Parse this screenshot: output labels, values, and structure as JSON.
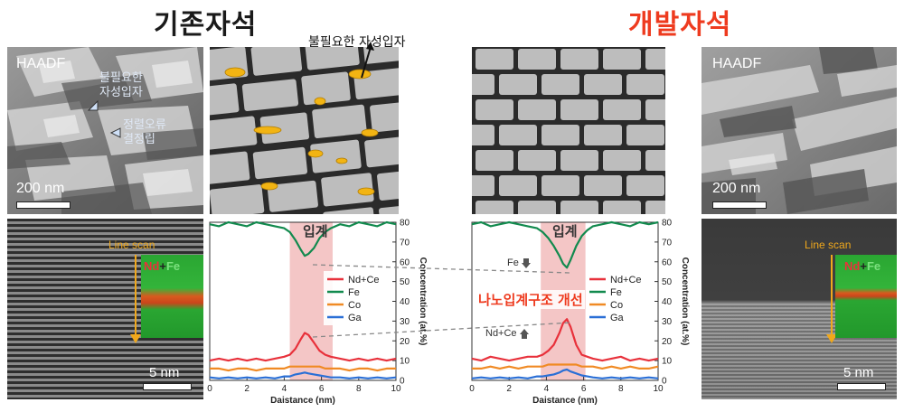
{
  "left": {
    "title": "기존자석",
    "haadf_label": "HAADF",
    "annot_particle_line1": "불필요한",
    "annot_particle_line2": "자성입자",
    "annot_grain_line1": "정렬오류",
    "annot_grain_line2": "결정립",
    "scale_top": "200 nm",
    "line_scan": "Line scan",
    "map_nd": "Nd",
    "map_plus": "+",
    "map_fe": "Fe",
    "scale_bottom": "5 nm",
    "schematic_callout": "불필요한 자성입자",
    "boundary_label": "입계"
  },
  "right": {
    "title": "개발자석",
    "haadf_label": "HAADF",
    "scale_top": "200 nm",
    "line_scan": "Line scan",
    "map_nd": "Nd",
    "map_plus": "+",
    "map_fe": "Fe",
    "scale_bottom": "5 nm",
    "boundary_label": "입계",
    "fe_annot": "Fe",
    "nd_annot": "Nd+Ce",
    "improvement": "나노입계구조 개선"
  },
  "colors": {
    "title_left": "#1a1a1a",
    "title_right": "#ee3b1f",
    "line_scan": "#f0a81c",
    "nd_ce": "#e8313b",
    "fe": "#128a4e",
    "co": "#f08a24",
    "ga": "#2a6fd6",
    "boundary": "#f4c6c6",
    "particle": "#f2b413"
  },
  "chart_data": [
    {
      "type": "line",
      "xlabel": "Daistance (nm)",
      "ylabel": "Concentration (at.%)",
      "xlim": [
        0,
        10
      ],
      "ylim": [
        0,
        80
      ],
      "xticks": [
        "0",
        "2",
        "4",
        "6",
        "8",
        "10"
      ],
      "yticks": [
        "0",
        "10",
        "20",
        "30",
        "40",
        "50",
        "60",
        "70",
        "80"
      ],
      "boundary_region": [
        4.3,
        6.6
      ],
      "boundary_label": "입계",
      "legend": "right-middle",
      "x": [
        0,
        0.5,
        1,
        1.5,
        2,
        2.5,
        3,
        3.5,
        4,
        4.3,
        4.6,
        4.9,
        5.1,
        5.3,
        5.6,
        5.9,
        6.2,
        6.5,
        7,
        7.5,
        8,
        8.5,
        9,
        9.5,
        10
      ],
      "series": [
        {
          "name": "Nd+Ce",
          "color": "#e8313b",
          "values": [
            10,
            11,
            10,
            11,
            10,
            11,
            10,
            11,
            12,
            13,
            16,
            21,
            24,
            23,
            19,
            15,
            13,
            12,
            11,
            10,
            11,
            10,
            11,
            10,
            11
          ]
        },
        {
          "name": "Fe",
          "color": "#128a4e",
          "values": [
            79,
            78,
            80,
            79,
            78,
            80,
            79,
            78,
            77,
            75,
            71,
            66,
            63,
            64,
            67,
            72,
            75,
            77,
            79,
            78,
            80,
            79,
            78,
            80,
            79
          ]
        },
        {
          "name": "Co",
          "color": "#f08a24",
          "values": [
            6,
            6,
            5,
            6,
            6,
            5,
            6,
            6,
            6,
            7,
            7,
            7,
            7,
            7,
            7,
            7,
            6,
            6,
            6,
            5,
            6,
            6,
            5,
            6,
            6
          ]
        },
        {
          "name": "Ga",
          "color": "#2a6fd6",
          "values": [
            1.5,
            1,
            1.5,
            1,
            1.5,
            1,
            1.5,
            1,
            2,
            2,
            3,
            3.5,
            4,
            3.5,
            3,
            2.5,
            2,
            1.5,
            1.5,
            1,
            1.5,
            1,
            1.5,
            1,
            1.5
          ]
        }
      ]
    },
    {
      "type": "line",
      "xlabel": "Daistance (nm)",
      "ylabel": "Concentration (at.%)",
      "xlim": [
        0,
        10
      ],
      "ylim": [
        0,
        80
      ],
      "xticks": [
        "0",
        "2",
        "4",
        "6",
        "8",
        "10"
      ],
      "yticks": [
        "0",
        "10",
        "20",
        "30",
        "40",
        "50",
        "60",
        "70",
        "80"
      ],
      "boundary_region": [
        3.7,
        6.1
      ],
      "boundary_label": "입계",
      "legend": "right-middle",
      "x": [
        0,
        0.5,
        1,
        1.5,
        2,
        2.5,
        3,
        3.5,
        3.8,
        4.1,
        4.4,
        4.7,
        4.9,
        5.1,
        5.3,
        5.6,
        5.9,
        6.2,
        6.5,
        7,
        7.5,
        8,
        8.5,
        9,
        9.5,
        10
      ],
      "series": [
        {
          "name": "Nd+Ce",
          "color": "#e8313b",
          "values": [
            11,
            10,
            12,
            11,
            10,
            11,
            12,
            12,
            13,
            15,
            18,
            24,
            29,
            31,
            27,
            18,
            13,
            12,
            11,
            10,
            11,
            12,
            10,
            11,
            10,
            11
          ]
        },
        {
          "name": "Fe",
          "color": "#128a4e",
          "values": [
            79,
            80,
            78,
            79,
            80,
            79,
            78,
            77,
            75,
            72,
            68,
            63,
            59,
            57,
            61,
            68,
            73,
            76,
            78,
            79,
            80,
            79,
            78,
            80,
            79,
            80
          ]
        },
        {
          "name": "Co",
          "color": "#f08a24",
          "values": [
            6,
            6,
            7,
            6,
            7,
            6,
            7,
            7,
            7,
            8,
            8,
            8,
            8,
            8,
            8,
            8,
            7,
            7,
            7,
            6,
            7,
            6,
            7,
            6,
            6,
            7
          ]
        },
        {
          "name": "Ga",
          "color": "#2a6fd6",
          "values": [
            1,
            1.5,
            1,
            1.5,
            1,
            1.5,
            1,
            2,
            2,
            2.5,
            3,
            4,
            5,
            5.5,
            4.5,
            3.5,
            2.5,
            2,
            1.5,
            1,
            1.5,
            1,
            1.5,
            1,
            1.5,
            1
          ]
        }
      ]
    }
  ]
}
